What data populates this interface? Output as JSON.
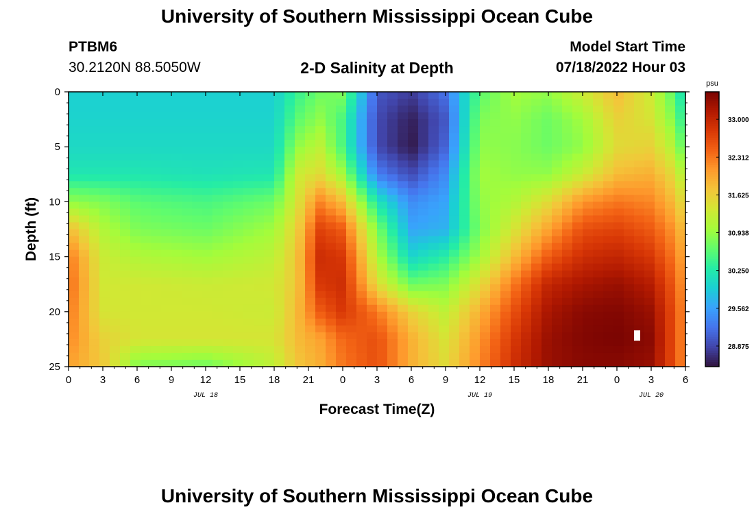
{
  "page": {
    "title": "University of Southern Mississippi Ocean Cube",
    "footer_title": "University of Southern Mississippi Ocean Cube",
    "station_id": "PTBM6",
    "station_coords": "30.2120N  88.5050W",
    "subtitle": "2-D Salinity at Depth",
    "model_start_label": "Model Start Time",
    "model_start_value": "07/18/2022 Hour 03"
  },
  "chart_data": {
    "type": "heatmap",
    "title": "2-D Salinity at Depth",
    "xlabel": "Forecast Time(Z)",
    "ylabel": "Depth (ft)",
    "colorbar_unit": "psu",
    "x_range_hours": [
      0,
      54
    ],
    "y_range_ft": [
      0,
      25
    ],
    "x_ticks": [
      {
        "hour": 0,
        "label": "0"
      },
      {
        "hour": 3,
        "label": "3"
      },
      {
        "hour": 6,
        "label": "6"
      },
      {
        "hour": 9,
        "label": "9"
      },
      {
        "hour": 12,
        "label": "12"
      },
      {
        "hour": 15,
        "label": "15"
      },
      {
        "hour": 18,
        "label": "18"
      },
      {
        "hour": 21,
        "label": "21"
      },
      {
        "hour": 24,
        "label": "0"
      },
      {
        "hour": 27,
        "label": "3"
      },
      {
        "hour": 30,
        "label": "6"
      },
      {
        "hour": 33,
        "label": "9"
      },
      {
        "hour": 36,
        "label": "12"
      },
      {
        "hour": 39,
        "label": "15"
      },
      {
        "hour": 42,
        "label": "18"
      },
      {
        "hour": 45,
        "label": "21"
      },
      {
        "hour": 48,
        "label": "0"
      },
      {
        "hour": 51,
        "label": "3"
      },
      {
        "hour": 54,
        "label": "6"
      }
    ],
    "y_ticks": [
      {
        "depth": 0,
        "label": "0"
      },
      {
        "depth": 5,
        "label": "5"
      },
      {
        "depth": 10,
        "label": "10"
      },
      {
        "depth": 15,
        "label": "15"
      },
      {
        "depth": 20,
        "label": "20"
      },
      {
        "depth": 25,
        "label": "25"
      }
    ],
    "date_labels": [
      {
        "hour": 12,
        "label": "JUL 18"
      },
      {
        "hour": 36,
        "label": "JUL 19"
      },
      {
        "hour": 51,
        "label": "JUL 20"
      }
    ],
    "colorbar_range": [
      28.5,
      33.5
    ],
    "colorbar_ticks": [
      {
        "value": 28.875,
        "label": "28.875"
      },
      {
        "value": 29.562,
        "label": "29.562"
      },
      {
        "value": 30.25,
        "label": "30.250"
      },
      {
        "value": 30.938,
        "label": "30.938"
      },
      {
        "value": 31.625,
        "label": "31.625"
      },
      {
        "value": 32.312,
        "label": "32.312"
      },
      {
        "value": 33.0,
        "label": "33.000"
      }
    ],
    "colormap": [
      "#30123b",
      "#4145ab",
      "#4675ed",
      "#39a2fc",
      "#1bcfd4",
      "#24eca6",
      "#61fc6c",
      "#a4fc3b",
      "#d1e834",
      "#f3c63a",
      "#fe9b2d",
      "#f36315",
      "#d93806",
      "#b11901",
      "#7a0402"
    ],
    "depth_samples_ft": [
      0,
      2.5,
      5,
      7.5,
      10,
      12.5,
      15,
      17.5,
      20,
      22.5,
      25
    ],
    "salinity_profiles": [
      {
        "hour": 0,
        "values": [
          29.95,
          29.98,
          30.05,
          30.2,
          30.9,
          31.8,
          32.3,
          32.4,
          32.3,
          32.2,
          32.0
        ]
      },
      {
        "hour": 3,
        "values": [
          29.95,
          29.98,
          30.05,
          30.2,
          30.8,
          31.1,
          31.3,
          31.35,
          31.4,
          31.6,
          31.7
        ]
      },
      {
        "hour": 6,
        "values": [
          29.95,
          29.98,
          30.05,
          30.2,
          30.6,
          30.8,
          31.1,
          31.35,
          31.35,
          31.4,
          30.8
        ]
      },
      {
        "hour": 12,
        "values": [
          29.95,
          29.98,
          30.05,
          30.15,
          30.5,
          30.7,
          31.0,
          31.3,
          31.35,
          31.4,
          30.7
        ]
      },
      {
        "hour": 18,
        "values": [
          29.95,
          29.98,
          30.05,
          30.2,
          30.7,
          31.0,
          31.2,
          31.35,
          31.3,
          31.4,
          31.2
        ]
      },
      {
        "hour": 20,
        "values": [
          30.4,
          30.6,
          30.9,
          31.3,
          31.4,
          31.6,
          31.7,
          31.7,
          31.8,
          31.8,
          31.7
        ]
      },
      {
        "hour": 22,
        "values": [
          30.7,
          30.9,
          31.2,
          31.5,
          32.2,
          32.7,
          32.9,
          32.8,
          32.5,
          32.0,
          31.9
        ]
      },
      {
        "hour": 24,
        "values": [
          30.8,
          30.5,
          30.5,
          31.0,
          31.8,
          32.5,
          32.8,
          32.9,
          32.8,
          32.4,
          32.3
        ]
      },
      {
        "hour": 27,
        "values": [
          29.0,
          28.9,
          28.9,
          29.3,
          30.2,
          30.8,
          31.1,
          31.5,
          32.3,
          32.6,
          32.6
        ]
      },
      {
        "hour": 30,
        "values": [
          28.8,
          28.6,
          28.55,
          28.9,
          29.4,
          29.6,
          30.0,
          30.7,
          31.6,
          31.9,
          31.9
        ]
      },
      {
        "hour": 33,
        "values": [
          29.2,
          29.0,
          29.1,
          29.4,
          29.6,
          29.7,
          30.3,
          30.8,
          31.2,
          31.4,
          31.5
        ]
      },
      {
        "hour": 36,
        "values": [
          30.6,
          30.8,
          30.9,
          31.0,
          30.9,
          30.8,
          31.0,
          31.5,
          31.9,
          32.1,
          32.2
        ]
      },
      {
        "hour": 39,
        "values": [
          31.0,
          30.9,
          30.85,
          30.9,
          31.1,
          31.4,
          31.8,
          32.3,
          32.6,
          32.8,
          32.9
        ]
      },
      {
        "hour": 42,
        "values": [
          30.9,
          30.7,
          30.7,
          30.9,
          31.5,
          32.0,
          32.5,
          33.0,
          33.2,
          33.3,
          33.3
        ]
      },
      {
        "hour": 45,
        "values": [
          31.3,
          31.0,
          30.9,
          31.3,
          32.1,
          32.6,
          32.9,
          33.2,
          33.4,
          33.45,
          33.4
        ]
      },
      {
        "hour": 48,
        "values": [
          31.8,
          31.6,
          31.5,
          31.8,
          32.3,
          32.7,
          33.0,
          33.3,
          33.45,
          33.5,
          33.4
        ]
      },
      {
        "hour": 51,
        "values": [
          31.3,
          31.4,
          31.6,
          31.9,
          32.2,
          32.5,
          32.8,
          33.1,
          33.3,
          33.4,
          33.3
        ]
      },
      {
        "hour": 53,
        "values": [
          30.6,
          30.8,
          31.1,
          31.5,
          31.8,
          32.1,
          32.3,
          32.5,
          32.6,
          32.6,
          32.6
        ]
      },
      {
        "hour": 54,
        "values": [
          30.0,
          30.2,
          30.5,
          31.0,
          31.4,
          31.7,
          31.9,
          32.0,
          32.1,
          32.1,
          32.1
        ]
      }
    ]
  }
}
